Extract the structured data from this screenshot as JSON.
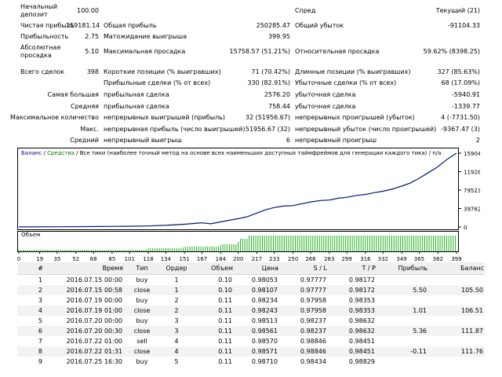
{
  "stats": {
    "initial_deposit_label_1": "Начальный",
    "initial_deposit_label_2": "депозит",
    "initial_deposit_value": "100.00",
    "spread_label": "Спред",
    "spread_value": "Текущий (21)",
    "net_profit_label": "Чистая прибыль",
    "net_profit_value": "159181.14",
    "gross_profit_label": "Общая прибыль",
    "gross_profit_value": "250285.47",
    "gross_loss_label": "Общий убыток",
    "gross_loss_value": "-91104.33",
    "profitability_label": "Прибыльность",
    "profitability_value": "2.75",
    "expected_payoff_label": "Матожидание выигрыша",
    "expected_payoff_value": "399.95",
    "abs_drawdown_label_1": "Абсолютная",
    "abs_drawdown_label_2": "просадка",
    "abs_drawdown_value": "5.10",
    "max_drawdown_label": "Максимальная просадка",
    "max_drawdown_value": "15758.57 (51.21%)",
    "rel_drawdown_label": "Относительная просадка",
    "rel_drawdown_value": "59.62% (8398.25)",
    "total_trades_label": "Всего сделок",
    "total_trades_value": "398",
    "short_label": "Короткие позиции (% выигравших)",
    "short_value": "71 (70.42%)",
    "long_label": "Длинные позиции (% выигравших)",
    "long_value": "327 (85.63%)",
    "profit_trades_label": "Прибыльные сделки (% от всех)",
    "profit_trades_value": "330 (82.91%)",
    "loss_trades_label": "Убыточные сделки (% от всех)",
    "loss_trades_value": "68 (17.09%)",
    "largest_left_label": "Самая большая",
    "largest_profit_label": "прибыльная сделка",
    "largest_profit_value": "2576.20",
    "largest_loss_label": "убыточная сделка",
    "largest_loss_value": "-5940.91",
    "average_left_label": "Средняя",
    "avg_profit_label": "прибыльная сделка",
    "avg_profit_value": "758.44",
    "avg_loss_label": "убыточная сделка",
    "avg_loss_value": "-1339.77",
    "max_count_left_label": "Максимальное количество",
    "max_cons_wins_label": "непрерывных выигрышей (прибыль)",
    "max_cons_wins_value": "32 (51956.67)",
    "max_cons_losses_label": "непрерывных проигрышей (убыток)",
    "max_cons_losses_value": "4 (-7731.50)",
    "max_left_label": "Макс.",
    "max_cons_profit_label": "непрерывная прибыль (число выигрышей)",
    "max_cons_profit_value": "51956.67 (32)",
    "max_cons_loss_label": "непрерывный убыток (число проигрышей)",
    "max_cons_loss_value": "-9367.47 (3)",
    "avg_left_label": "Средний",
    "avg_cons_wins_label": "непрерывный выигрыш",
    "avg_cons_wins_value": "6",
    "avg_cons_losses_label": "непрерывный проигрыш",
    "avg_cons_losses_value": "2"
  },
  "chart": {
    "legend_balance": "Баланс",
    "legend_sep": "/",
    "legend_equity": "Средства",
    "legend_rest": "/ Все тики (наиболее точный метод на основе всех наименьших доступных таймфреймов для генерации каждого тика) / n/a",
    "volume_label": "Объем",
    "balance_color": "#00008b",
    "equity_color": "#008000",
    "volume_color": "#22b022"
  },
  "chart_data": {
    "type": "line",
    "ylim": [
      0,
      159046
    ],
    "xlim": [
      0,
      399
    ],
    "y_ticks": [
      "159046",
      "119285",
      "79523",
      "39762",
      "0"
    ],
    "y_tick_values": [
      159046,
      119285,
      79523,
      39762,
      0
    ],
    "x_ticks": [
      "0",
      "19",
      "35",
      "52",
      "68",
      "85",
      "101",
      "118",
      "134",
      "151",
      "167",
      "184",
      "200",
      "217",
      "233",
      "250",
      "266",
      "283",
      "299",
      "316",
      "332",
      "349",
      "365",
      "382",
      "399"
    ],
    "x_tick_values": [
      0,
      19,
      35,
      52,
      68,
      85,
      101,
      118,
      134,
      151,
      167,
      184,
      200,
      217,
      233,
      250,
      266,
      283,
      299,
      316,
      332,
      349,
      365,
      382,
      399
    ],
    "series": [
      {
        "name": "Баланс",
        "x": [
          0,
          40,
          80,
          100,
          118,
          134,
          151,
          167,
          175,
          184,
          192,
          200,
          208,
          217,
          225,
          233,
          241,
          250,
          258,
          266,
          275,
          283,
          291,
          299,
          308,
          316,
          324,
          332,
          341,
          349,
          357,
          365,
          374,
          382,
          390,
          399
        ],
        "values": [
          100,
          500,
          1200,
          1600,
          2200,
          3500,
          6000,
          9000,
          7000,
          11000,
          14500,
          18000,
          22000,
          30000,
          37000,
          42000,
          45000,
          46000,
          50000,
          54000,
          57000,
          58000,
          62000,
          64000,
          68000,
          70000,
          74000,
          77000,
          82000,
          88000,
          95000,
          105000,
          118000,
          130000,
          145000,
          159000
        ]
      }
    ],
    "volume": {
      "x": [
        0,
        117,
        118,
        150,
        151,
        184,
        185,
        200,
        201,
        210,
        211,
        399
      ],
      "values": [
        0.1,
        0.1,
        0.2,
        0.25,
        0.3,
        0.4,
        0.45,
        0.6,
        0.8,
        1.0,
        1.0,
        1.0
      ]
    }
  },
  "table": {
    "columns": [
      "#",
      "Время",
      "Тип",
      "Ордер",
      "Объем",
      "Цена",
      "S / L",
      "T / P",
      "Прибыль",
      "Баланс"
    ],
    "rows": [
      [
        "1",
        "2016.07.15 00:00",
        "buy",
        "1",
        "0.10",
        "0.98053",
        "0.97777",
        "0.98172",
        "",
        ""
      ],
      [
        "2",
        "2016.07.15 00:58",
        "close",
        "1",
        "0.10",
        "0.98107",
        "0.97777",
        "0.98172",
        "5.50",
        "105.50"
      ],
      [
        "3",
        "2016.07.19 00:00",
        "buy",
        "2",
        "0.11",
        "0.98234",
        "0.97958",
        "0.98353",
        "",
        ""
      ],
      [
        "4",
        "2016.07.19 01:00",
        "close",
        "2",
        "0.11",
        "0.98243",
        "0.97958",
        "0.98353",
        "1.01",
        "106.51"
      ],
      [
        "5",
        "2016.07.20 00:00",
        "buy",
        "3",
        "0.11",
        "0.98513",
        "0.98237",
        "0.98632",
        "",
        ""
      ],
      [
        "6",
        "2016.07.20 00:30",
        "close",
        "3",
        "0.11",
        "0.98561",
        "0.98237",
        "0.98632",
        "5.36",
        "111.87"
      ],
      [
        "7",
        "2016.07.22 01:00",
        "sell",
        "4",
        "0.11",
        "0.98570",
        "0.98846",
        "0.98451",
        "",
        ""
      ],
      [
        "8",
        "2016.07.22 01:31",
        "close",
        "4",
        "0.11",
        "0.98571",
        "0.98846",
        "0.98451",
        "-0.11",
        "111.76"
      ],
      [
        "9",
        "2016.07.25 16:30",
        "buy",
        "5",
        "0.11",
        "0.98710",
        "0.98434",
        "0.98829",
        "",
        ""
      ]
    ]
  }
}
